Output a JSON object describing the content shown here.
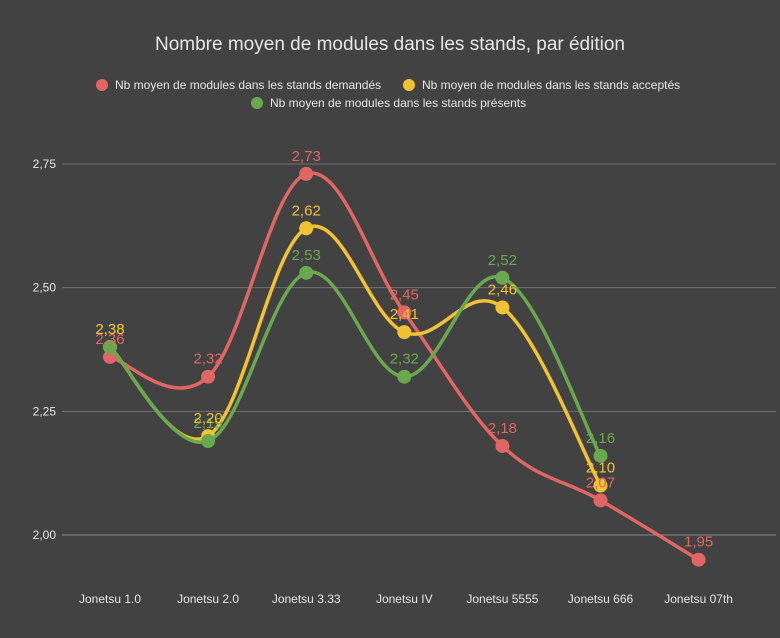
{
  "chart_data": {
    "type": "line",
    "title": "Nombre moyen de modules dans les stands, par édition",
    "categories": [
      "Jonetsu 1.0",
      "Jonetsu 2.0",
      "Jonetsu 3.33",
      "Jonetsu IV",
      "Jonetsu 5555",
      "Jonetsu 666",
      "Jonetsu 07th"
    ],
    "y_ticks": [
      "2,00",
      "2,25",
      "2,50",
      "2,75"
    ],
    "ylim": [
      2.0,
      2.75
    ],
    "grid": true,
    "legend_position": "top",
    "series": [
      {
        "name": "Nb moyen de modules dans les stands demandés",
        "color": "#e06666",
        "values": [
          2.36,
          2.32,
          2.73,
          2.45,
          2.18,
          2.07,
          1.95
        ],
        "labels": [
          "2,36",
          "2,32",
          "2,73",
          "2,45",
          "2,18",
          "2,07",
          "1,95"
        ]
      },
      {
        "name": "Nb moyen de modules dans les stands acceptés",
        "color": "#f1c232",
        "values": [
          2.38,
          2.2,
          2.62,
          2.41,
          2.46,
          2.1,
          null
        ],
        "labels": [
          "2,38",
          "2,20",
          "2,62",
          "2,41",
          "2,46",
          "2,10",
          null
        ]
      },
      {
        "name": "Nb moyen de modules dans les stands présents",
        "color": "#6aa84f",
        "values": [
          2.38,
          2.19,
          2.53,
          2.32,
          2.52,
          2.16,
          null
        ],
        "labels": [
          "2,38",
          "2,19",
          "2,53",
          "2,32",
          "2,52",
          "2,16",
          null
        ]
      }
    ]
  }
}
